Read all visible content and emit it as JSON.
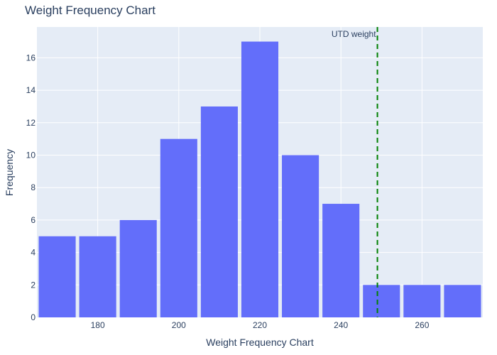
{
  "chart_data": {
    "type": "bar",
    "title": "Weight Frequency Chart",
    "xlabel": "Weight Frequency Chart",
    "ylabel": "Frequency",
    "bins": [
      {
        "start": 165,
        "end": 175,
        "count": 5
      },
      {
        "start": 175,
        "end": 185,
        "count": 5
      },
      {
        "start": 185,
        "end": 195,
        "count": 6
      },
      {
        "start": 195,
        "end": 205,
        "count": 11
      },
      {
        "start": 205,
        "end": 215,
        "count": 13
      },
      {
        "start": 215,
        "end": 225,
        "count": 17
      },
      {
        "start": 225,
        "end": 235,
        "count": 10
      },
      {
        "start": 235,
        "end": 245,
        "count": 7
      },
      {
        "start": 245,
        "end": 255,
        "count": 2
      },
      {
        "start": 255,
        "end": 265,
        "count": 2
      },
      {
        "start": 265,
        "end": 275,
        "count": 2
      }
    ],
    "xlim": [
      165,
      275
    ],
    "ylim": [
      0,
      17.9
    ],
    "xticks": [
      180,
      200,
      220,
      240,
      260
    ],
    "yticks": [
      0,
      2,
      4,
      6,
      8,
      10,
      12,
      14,
      16
    ],
    "reference_line": {
      "x": 249,
      "label": "UTD weight",
      "color": "#008000",
      "style": "dashed"
    },
    "bar_color": "#636efa",
    "plot_bg": "#e5ecf6",
    "grid": true
  }
}
